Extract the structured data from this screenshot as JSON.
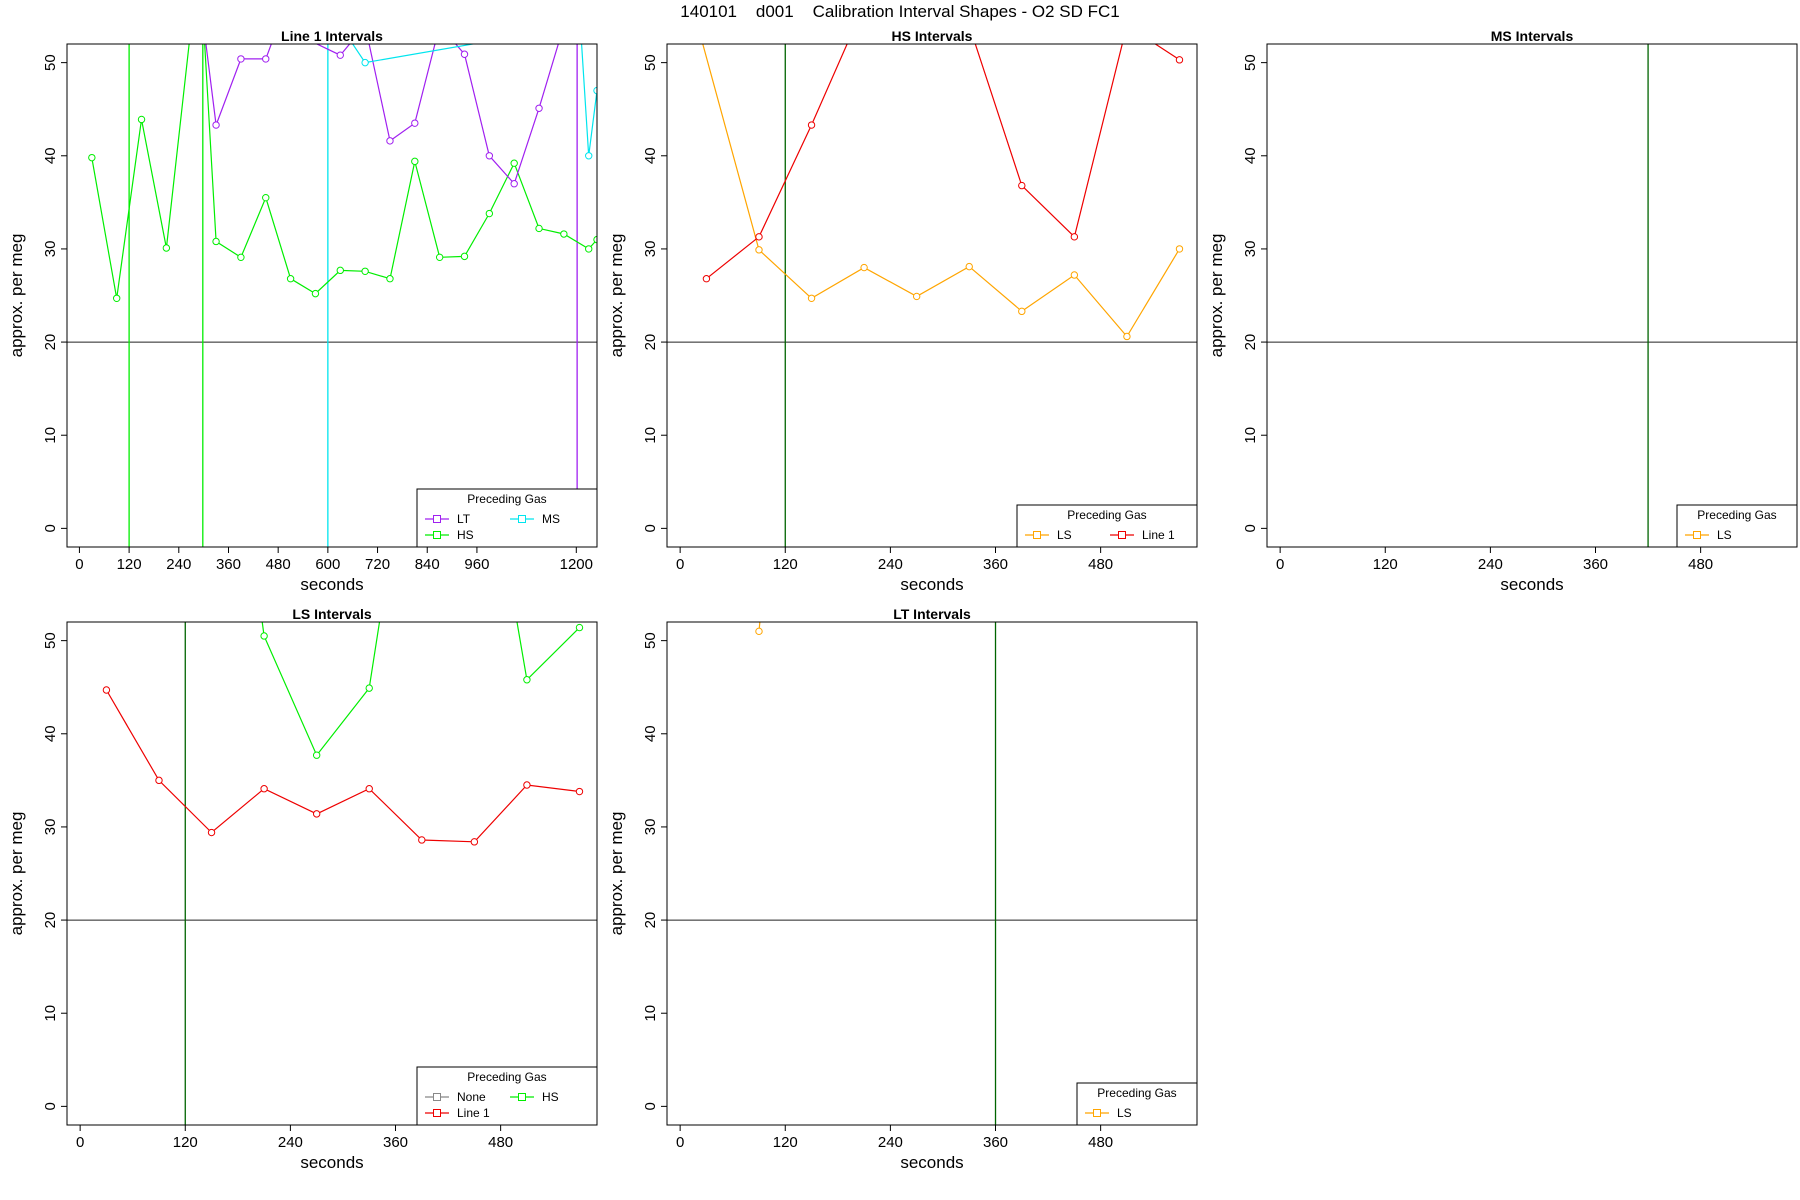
{
  "title": "140101    d001    Calibration Interval Shapes - O2 SD FC1",
  "colors": {
    "LT": "#a020f0",
    "HS": "#00ee00",
    "MS": "#00e5ee",
    "LS": "#ffa500",
    "Line 1": "#ee0000",
    "None": "#888888",
    "marker_line": "#006400",
    "reference_line": "#222222"
  },
  "chart_data": [
    {
      "type": "line",
      "title": "Line 1 Intervals",
      "xlabel": "seconds",
      "ylabel": "approx. per meg",
      "xlim": [
        -30,
        1250
      ],
      "ylim": [
        -2,
        52
      ],
      "xticks": [
        0,
        120,
        240,
        360,
        480,
        600,
        720,
        840,
        960,
        1200
      ],
      "xtick_labels": [
        "0",
        "120",
        "240",
        "360",
        "480",
        "600",
        "720",
        "840",
        "960",
        "1200"
      ],
      "yticks": [
        0,
        10,
        20,
        30,
        40,
        50
      ],
      "hline": 20,
      "vlines": [
        {
          "x": 120,
          "color": "HS"
        },
        {
          "x": 298,
          "color": "HS"
        },
        {
          "x": 600,
          "color": "MS"
        },
        {
          "x": 1202,
          "color": "LT"
        }
      ],
      "legend": {
        "title": "Preceding Gas",
        "position": "bottom-right",
        "columns": 2,
        "entries": [
          "LT",
          "MS",
          "HS"
        ]
      },
      "series": [
        {
          "name": "HS",
          "x": [
            30,
            90,
            150,
            210,
            270,
            300,
            330,
            390,
            450,
            510,
            570,
            630,
            690,
            750,
            810,
            870,
            930,
            990,
            1050,
            1110,
            1170,
            1230,
            1250
          ],
          "y": [
            39.8,
            24.7,
            43.9,
            30.1,
            54,
            54,
            30.8,
            29.1,
            35.5,
            26.8,
            25.2,
            27.7,
            27.6,
            26.8,
            39.4,
            29.1,
            29.2,
            33.8,
            39.2,
            32.2,
            31.6,
            30.0,
            31.0
          ]
        },
        {
          "name": "LT",
          "x": [
            300,
            330,
            390,
            450,
            480,
            630,
            690,
            750,
            810,
            870,
            930,
            990,
            1050,
            1110,
            1170
          ],
          "y": [
            54,
            43.3,
            50.4,
            50.4,
            54,
            50.8,
            54,
            41.6,
            43.5,
            54,
            50.9,
            40.0,
            37.0,
            45.1,
            54
          ]
        },
        {
          "name": "MS",
          "x": [
            630,
            690,
            1210,
            1230,
            1250
          ],
          "y": [
            54,
            50.0,
            54,
            40.0,
            47.0
          ]
        }
      ]
    },
    {
      "type": "line",
      "title": "HS Intervals",
      "xlabel": "seconds",
      "ylabel": "approx. per meg",
      "xlim": [
        -15,
        590
      ],
      "ylim": [
        -2,
        52
      ],
      "xticks": [
        0,
        120,
        240,
        360,
        480
      ],
      "xtick_labels": [
        "0",
        "120",
        "240",
        "360",
        "480"
      ],
      "yticks": [
        0,
        10,
        20,
        30,
        40,
        50
      ],
      "hline": 20,
      "vlines": [
        {
          "x": 120,
          "color": "marker_line"
        }
      ],
      "legend": {
        "title": "Preceding Gas",
        "position": "bottom-right",
        "columns": 2,
        "entries": [
          "LS",
          "Line 1"
        ]
      },
      "series": [
        {
          "name": "LS",
          "x": [
            20,
            90,
            150,
            210,
            270,
            330,
            390,
            450,
            510,
            570
          ],
          "y": [
            54,
            29.9,
            24.7,
            28.0,
            24.9,
            28.1,
            23.3,
            27.2,
            20.6,
            30.0
          ]
        },
        {
          "name": "Line 1",
          "x": [
            30,
            90,
            150,
            200,
            330,
            390,
            450,
            510,
            570
          ],
          "y": [
            26.8,
            31.3,
            43.3,
            54,
            54,
            36.8,
            31.3,
            54,
            50.3
          ]
        }
      ]
    },
    {
      "type": "line",
      "title": "MS Intervals",
      "xlabel": "seconds",
      "ylabel": "approx. per meg",
      "xlim": [
        -15,
        590
      ],
      "ylim": [
        -2,
        52
      ],
      "xticks": [
        0,
        120,
        240,
        360,
        480
      ],
      "xtick_labels": [
        "0",
        "120",
        "240",
        "360",
        "480"
      ],
      "yticks": [
        0,
        10,
        20,
        30,
        40,
        50
      ],
      "hline": 20,
      "vlines": [
        {
          "x": 420,
          "color": "marker_line"
        }
      ],
      "legend": {
        "title": "Preceding Gas",
        "position": "bottom-right",
        "columns": 1,
        "entries": [
          "LS"
        ]
      },
      "series": []
    },
    {
      "type": "line",
      "title": "LS Intervals",
      "xlabel": "seconds",
      "ylabel": "approx. per meg",
      "xlim": [
        -15,
        590
      ],
      "ylim": [
        -2,
        52
      ],
      "xticks": [
        0,
        120,
        240,
        360,
        480
      ],
      "xtick_labels": [
        "0",
        "120",
        "240",
        "360",
        "480"
      ],
      "yticks": [
        0,
        10,
        20,
        30,
        40,
        50
      ],
      "hline": 20,
      "vlines": [
        {
          "x": 120,
          "color": "marker_line"
        }
      ],
      "legend": {
        "title": "Preceding Gas",
        "position": "bottom-right",
        "columns": 2,
        "entries": [
          "None",
          "HS",
          "Line 1"
        ]
      },
      "series": [
        {
          "name": "Line 1",
          "x": [
            30,
            90,
            150,
            210,
            270,
            330,
            390,
            450,
            510,
            570
          ],
          "y": [
            44.7,
            35.0,
            29.4,
            34.1,
            31.4,
            34.1,
            28.6,
            28.4,
            34.5,
            33.8
          ]
        },
        {
          "name": "HS",
          "x": [
            205,
            210,
            270,
            330,
            345,
            495,
            510,
            570
          ],
          "y": [
            54,
            50.5,
            37.7,
            44.9,
            54,
            54,
            45.8,
            51.4
          ]
        }
      ]
    },
    {
      "type": "line",
      "title": "LT Intervals",
      "xlabel": "seconds",
      "ylabel": "approx. per meg",
      "xlim": [
        -15,
        590
      ],
      "ylim": [
        -2,
        52
      ],
      "xticks": [
        0,
        120,
        240,
        360,
        480
      ],
      "xtick_labels": [
        "0",
        "120",
        "240",
        "360",
        "480"
      ],
      "yticks": [
        0,
        10,
        20,
        30,
        40,
        50
      ],
      "hline": 20,
      "vlines": [
        {
          "x": 360,
          "color": "marker_line"
        }
      ],
      "legend": {
        "title": "Preceding Gas",
        "position": "bottom-right",
        "columns": 1,
        "entries": [
          "LS"
        ]
      },
      "series": [
        {
          "name": "LS",
          "x": [
            90,
            93
          ],
          "y": [
            51.0,
            54
          ]
        }
      ]
    }
  ]
}
